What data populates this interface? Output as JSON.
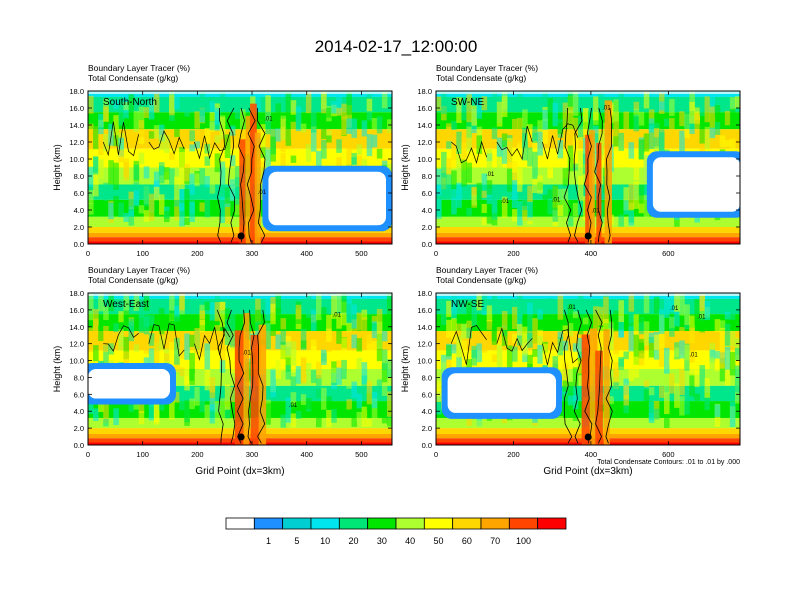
{
  "title": "2014-02-17_12:00:00",
  "chart_data": [
    {
      "type": "heatmap",
      "panel_label": "South-North",
      "title_lines": [
        "Boundary Layer Tracer    (%)",
        "Total Condensate    (g/kg)"
      ],
      "xlabel": "",
      "ylabel": "Height (km)",
      "xlim": [
        0,
        556
      ],
      "ylim": [
        0,
        18
      ],
      "xticks": [
        "0",
        "100",
        "200",
        "300",
        "400",
        "500"
      ],
      "xtick_values": [
        0,
        100,
        200,
        300,
        400,
        500
      ],
      "yticks": [
        "0.0",
        "2.0",
        "4.0",
        "6.0",
        "8.0",
        "10.0",
        "12.0",
        "14.0",
        "16.0",
        "18.0"
      ],
      "marker_x": 280,
      "contour_labels": [
        {
          "text": ".01",
          "x": 330,
          "y": 14.8
        },
        {
          "text": ".01",
          "x": 318,
          "y": 6.2
        }
      ],
      "clear_regions": [
        {
          "x": [
            330,
            545
          ],
          "y": [
            2.2,
            8.5
          ]
        }
      ],
      "note": ""
    },
    {
      "type": "heatmap",
      "panel_label": "SW-NE",
      "title_lines": [
        "Boundary Layer Tracer    (%)",
        "Total Condensate    (g/kg)"
      ],
      "xlabel": "",
      "ylabel": "Height (km)",
      "xlim": [
        0,
        785
      ],
      "ylim": [
        0,
        18
      ],
      "xticks": [
        "0",
        "200",
        "400",
        "600"
      ],
      "xtick_values": [
        0,
        200,
        400,
        600
      ],
      "yticks": [
        "0.0",
        "2.0",
        "4.0",
        "6.0",
        "8.0",
        "10.0",
        "12.0",
        "14.0",
        "16.0",
        "18.0"
      ],
      "marker_x": 393,
      "contour_labels": [
        {
          "text": ".01",
          "x": 140,
          "y": 8.3
        },
        {
          "text": ".01",
          "x": 178,
          "y": 5.1
        },
        {
          "text": ".01",
          "x": 310,
          "y": 5.3
        },
        {
          "text": ".01",
          "x": 412,
          "y": 4.0
        },
        {
          "text": ".01",
          "x": 440,
          "y": 16.1
        }
      ],
      "clear_regions": [
        {
          "x": [
            560,
            785
          ],
          "y": [
            3.8,
            10.2
          ]
        }
      ],
      "note": ""
    },
    {
      "type": "heatmap",
      "panel_label": "West-East",
      "title_lines": [
        "Boundary Layer Tracer    (%)",
        "Total Condensate    (g/kg)"
      ],
      "xlabel": "Grid Point (dx=3km)",
      "ylabel": "Height (km)",
      "xlim": [
        0,
        556
      ],
      "ylim": [
        0,
        18
      ],
      "xticks": [
        "0",
        "100",
        "200",
        "300",
        "400",
        "500"
      ],
      "xtick_values": [
        0,
        100,
        200,
        300,
        400,
        500
      ],
      "yticks": [
        "0.0",
        "2.0",
        "4.0",
        "6.0",
        "8.0",
        "10.0",
        "12.0",
        "14.0",
        "16.0",
        "18.0"
      ],
      "marker_x": 280,
      "contour_labels": [
        {
          "text": ".01",
          "x": 290,
          "y": 11.0
        },
        {
          "text": ".01",
          "x": 375,
          "y": 4.8
        },
        {
          "text": ".01",
          "x": 455,
          "y": 15.5
        }
      ],
      "clear_regions": [
        {
          "x": [
            0,
            150
          ],
          "y": [
            5.5,
            9.0
          ]
        }
      ],
      "note": ""
    },
    {
      "type": "heatmap",
      "panel_label": "NW-SE",
      "title_lines": [
        "Boundary Layer Tracer    (%)",
        "Total Condensate    (g/kg)"
      ],
      "xlabel": "Grid Point (dx=3km)",
      "ylabel": "Height (km)",
      "xlim": [
        0,
        785
      ],
      "ylim": [
        0,
        18
      ],
      "xticks": [
        "0",
        "200",
        "400",
        "600"
      ],
      "xtick_values": [
        0,
        200,
        400,
        600
      ],
      "yticks": [
        "0.0",
        "2.0",
        "4.0",
        "6.0",
        "8.0",
        "10.0",
        "12.0",
        "14.0",
        "16.0",
        "18.0"
      ],
      "marker_x": 393,
      "contour_labels": [
        {
          "text": ".01",
          "x": 350,
          "y": 16.4
        },
        {
          "text": ".01",
          "x": 615,
          "y": 16.3
        },
        {
          "text": ".01",
          "x": 685,
          "y": 15.3
        },
        {
          "text": ".01",
          "x": 665,
          "y": 10.8
        }
      ],
      "clear_regions": [
        {
          "x": [
            30,
            310
          ],
          "y": [
            3.8,
            8.5
          ]
        }
      ],
      "note": "Total Condensate Contours: .01 to .01 by .000"
    }
  ],
  "colorbar": {
    "colors": [
      "#ffffff",
      "#1e90ff",
      "#00ced1",
      "#00e5ee",
      "#00e676",
      "#00e600",
      "#adff2f",
      "#ffff00",
      "#ffd700",
      "#ffa500",
      "#ff4500",
      "#ff0000"
    ],
    "labels": [
      "1",
      "5",
      "10",
      "20",
      "30",
      "40",
      "50",
      "60",
      "70",
      "100"
    ]
  }
}
